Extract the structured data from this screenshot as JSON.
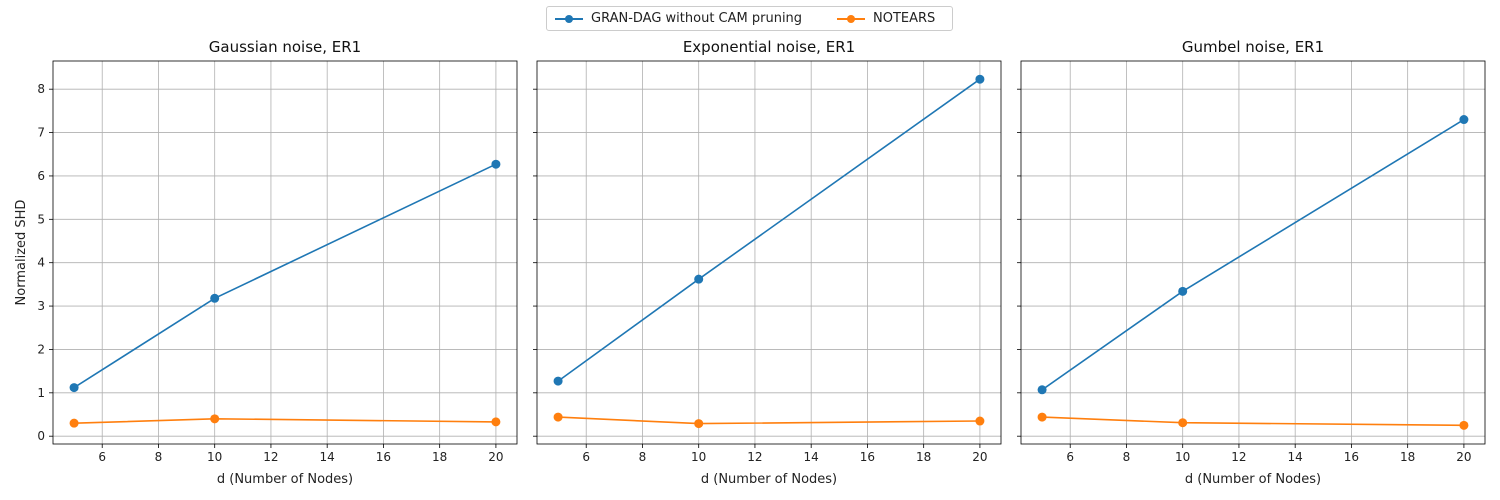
{
  "legend": {
    "series": [
      "GRAN-DAG without CAM pruning",
      "NOTEARS"
    ]
  },
  "colors": {
    "series": [
      "#1f77b4",
      "#ff7f0e"
    ],
    "grid": "#b0b0b0"
  },
  "chart_data": [
    {
      "type": "line",
      "title": "Gaussian noise, ER1",
      "xlabel": "d (Number of Nodes)",
      "ylabel": "Normalized SHD",
      "x": [
        5,
        10,
        20
      ],
      "xlim": [
        4.25,
        20.75
      ],
      "ylim": [
        -0.18,
        8.65
      ],
      "xticks": [
        6,
        8,
        10,
        12,
        14,
        16,
        18,
        20
      ],
      "yticks": [
        0,
        1,
        2,
        3,
        4,
        5,
        6,
        7,
        8
      ],
      "show_yticklabels": true,
      "grid": true,
      "series": [
        {
          "name": "GRAN-DAG without CAM pruning",
          "values": [
            1.12,
            3.18,
            6.27
          ]
        },
        {
          "name": "NOTEARS",
          "values": [
            0.3,
            0.4,
            0.33
          ]
        }
      ]
    },
    {
      "type": "line",
      "title": "Exponential noise, ER1",
      "xlabel": "d (Number of Nodes)",
      "ylabel": "",
      "x": [
        5,
        10,
        20
      ],
      "xlim": [
        4.25,
        20.75
      ],
      "ylim": [
        -0.18,
        8.65
      ],
      "xticks": [
        6,
        8,
        10,
        12,
        14,
        16,
        18,
        20
      ],
      "yticks": [
        0,
        1,
        2,
        3,
        4,
        5,
        6,
        7,
        8
      ],
      "show_yticklabels": false,
      "grid": true,
      "series": [
        {
          "name": "GRAN-DAG without CAM pruning",
          "values": [
            1.27,
            3.62,
            8.23
          ]
        },
        {
          "name": "NOTEARS",
          "values": [
            0.44,
            0.29,
            0.35
          ]
        }
      ]
    },
    {
      "type": "line",
      "title": "Gumbel noise, ER1",
      "xlabel": "d (Number of Nodes)",
      "ylabel": "",
      "x": [
        5,
        10,
        20
      ],
      "xlim": [
        4.25,
        20.75
      ],
      "ylim": [
        -0.18,
        8.65
      ],
      "xticks": [
        6,
        8,
        10,
        12,
        14,
        16,
        18,
        20
      ],
      "yticks": [
        0,
        1,
        2,
        3,
        4,
        5,
        6,
        7,
        8
      ],
      "show_yticklabels": false,
      "grid": true,
      "series": [
        {
          "name": "GRAN-DAG without CAM pruning",
          "values": [
            1.07,
            3.34,
            7.3
          ]
        },
        {
          "name": "NOTEARS",
          "values": [
            0.44,
            0.31,
            0.25
          ]
        }
      ]
    }
  ]
}
